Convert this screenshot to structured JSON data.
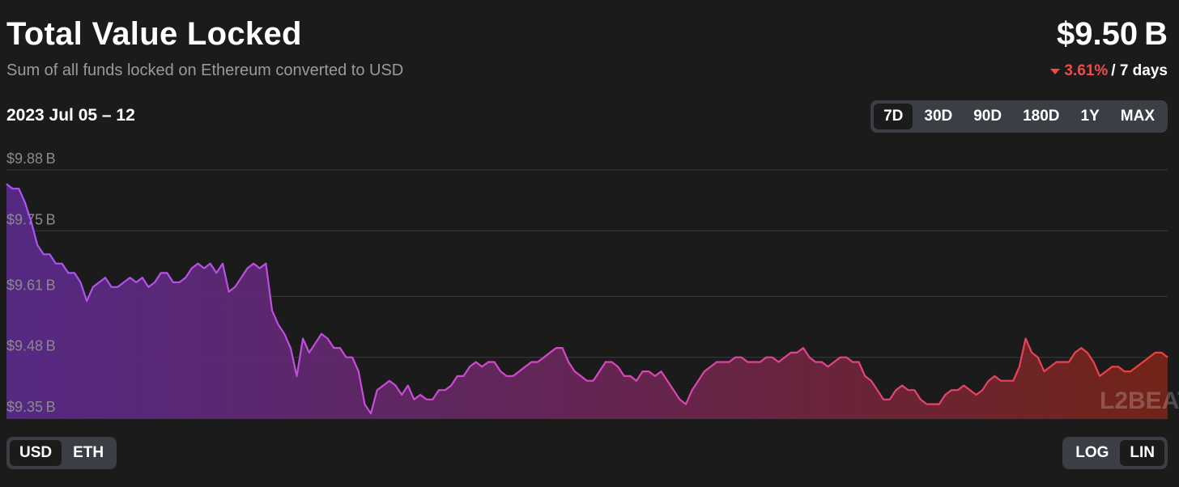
{
  "header": {
    "title": "Total Value Locked",
    "subtitle": "Sum of all funds locked on Ethereum converted to USD",
    "value": "$9.50 B",
    "change_pct": "3.61%",
    "change_period": "/ 7 days",
    "change_direction": "down"
  },
  "range_label": "2023 Jul 05 – 12",
  "periods": {
    "items": [
      "7D",
      "30D",
      "90D",
      "180D",
      "1Y",
      "MAX"
    ],
    "selected": "7D"
  },
  "units": {
    "items": [
      "USD",
      "ETH"
    ],
    "selected": "USD"
  },
  "scale": {
    "items": [
      "LOG",
      "LIN"
    ],
    "selected": "LIN"
  },
  "watermark": "L2BEAT",
  "colors": {
    "background": "#1b1b1b",
    "line_start": "#a855f7",
    "line_mid": "#d946c6",
    "line_end": "#ef4136",
    "negative": "#f04a4a"
  },
  "chart_data": {
    "type": "area",
    "x_label": "",
    "y_label": "",
    "y_ticks": [
      "$9.88 B",
      "$9.75 B",
      "$9.61 B",
      "$9.48 B",
      "$9.35 B"
    ],
    "y_tick_values": [
      9.88,
      9.75,
      9.61,
      9.48,
      9.35
    ],
    "ylim": [
      9.35,
      9.88
    ],
    "grid": true,
    "x_start": "2023-07-05",
    "x_end": "2023-07-12",
    "series": [
      {
        "name": "TVL (USD, billions)",
        "values": [
          9.85,
          9.84,
          9.84,
          9.81,
          9.77,
          9.72,
          9.7,
          9.7,
          9.68,
          9.68,
          9.66,
          9.66,
          9.64,
          9.6,
          9.63,
          9.64,
          9.65,
          9.63,
          9.63,
          9.64,
          9.65,
          9.64,
          9.65,
          9.63,
          9.64,
          9.66,
          9.66,
          9.64,
          9.64,
          9.65,
          9.67,
          9.68,
          9.67,
          9.68,
          9.66,
          9.68,
          9.62,
          9.63,
          9.65,
          9.67,
          9.68,
          9.67,
          9.68,
          9.58,
          9.55,
          9.53,
          9.5,
          9.44,
          9.52,
          9.49,
          9.51,
          9.53,
          9.52,
          9.5,
          9.5,
          9.48,
          9.48,
          9.45,
          9.38,
          9.36,
          9.41,
          9.42,
          9.43,
          9.42,
          9.4,
          9.42,
          9.39,
          9.4,
          9.39,
          9.39,
          9.41,
          9.41,
          9.42,
          9.44,
          9.44,
          9.46,
          9.47,
          9.46,
          9.47,
          9.47,
          9.45,
          9.44,
          9.44,
          9.45,
          9.46,
          9.47,
          9.47,
          9.48,
          9.49,
          9.5,
          9.5,
          9.47,
          9.45,
          9.44,
          9.43,
          9.43,
          9.45,
          9.47,
          9.47,
          9.46,
          9.44,
          9.44,
          9.43,
          9.45,
          9.45,
          9.44,
          9.45,
          9.43,
          9.41,
          9.39,
          9.38,
          9.41,
          9.43,
          9.45,
          9.46,
          9.47,
          9.47,
          9.47,
          9.48,
          9.48,
          9.47,
          9.47,
          9.47,
          9.48,
          9.48,
          9.47,
          9.48,
          9.49,
          9.49,
          9.5,
          9.48,
          9.47,
          9.47,
          9.46,
          9.47,
          9.48,
          9.48,
          9.47,
          9.47,
          9.44,
          9.43,
          9.41,
          9.39,
          9.39,
          9.41,
          9.42,
          9.41,
          9.41,
          9.39,
          9.38,
          9.38,
          9.38,
          9.4,
          9.41,
          9.41,
          9.42,
          9.41,
          9.4,
          9.41,
          9.43,
          9.44,
          9.43,
          9.43,
          9.43,
          9.46,
          9.52,
          9.49,
          9.48,
          9.45,
          9.46,
          9.47,
          9.47,
          9.47,
          9.49,
          9.5,
          9.49,
          9.47,
          9.44,
          9.45,
          9.46,
          9.46,
          9.45,
          9.45,
          9.46,
          9.47,
          9.48,
          9.49,
          9.49,
          9.48
        ]
      }
    ]
  }
}
